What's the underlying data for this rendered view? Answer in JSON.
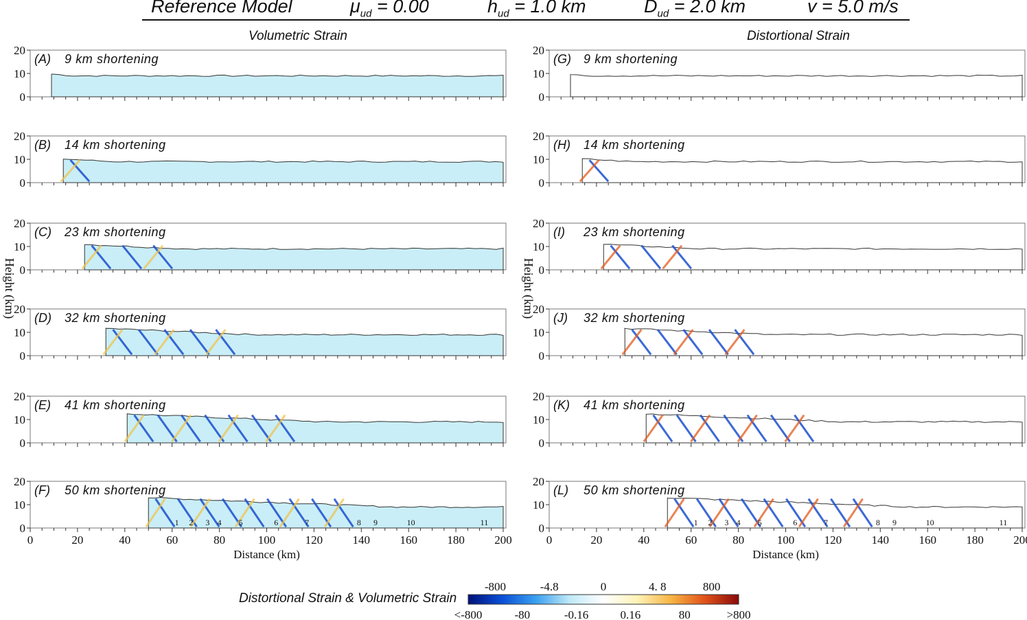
{
  "header": {
    "model": "Reference  Model",
    "mu_sym": "μ",
    "mu_sub": "ud",
    "mu_val": " = 0.00",
    "h_sym": "h",
    "h_sub": "ud",
    "h_val": " = 1.0 km",
    "d_sym": "D",
    "d_sub": "ud",
    "d_val": " = 2.0 km",
    "v_label": "v = 5.0 m/s"
  },
  "columns": {
    "left_title": "Volumetric Strain",
    "right_title": "Distortional Strain"
  },
  "axes": {
    "y_label": "Height (km)",
    "x_label": "Distance (km)",
    "y_ticks": [
      "0",
      "10",
      "20"
    ],
    "x_ticks": [
      "0",
      "20",
      "40",
      "60",
      "80",
      "100",
      "120",
      "140",
      "160",
      "180",
      "200"
    ],
    "x_range": [
      0,
      200
    ],
    "y_range": [
      0,
      20
    ]
  },
  "panels_left": [
    {
      "label": "(A)",
      "title": "9 km shortening",
      "shortening": 9
    },
    {
      "label": "(B)",
      "title": "14 km shortening",
      "shortening": 14
    },
    {
      "label": "(C)",
      "title": "23 km shortening",
      "shortening": 23
    },
    {
      "label": "(D)",
      "title": "32 km shortening",
      "shortening": 32
    },
    {
      "label": "(E)",
      "title": "41 km shortening",
      "shortening": 41
    },
    {
      "label": "(F)",
      "title": "50 km shortening",
      "shortening": 50
    }
  ],
  "panels_right": [
    {
      "label": "(G)",
      "title": "9 km shortening",
      "shortening": 9
    },
    {
      "label": "(H)",
      "title": "14 km shortening",
      "shortening": 14
    },
    {
      "label": "(I)",
      "title": "23 km shortening",
      "shortening": 23
    },
    {
      "label": "(J)",
      "title": "32 km shortening",
      "shortening": 32
    },
    {
      "label": "(K)",
      "title": "41 km shortening",
      "shortening": 41
    },
    {
      "label": "(L)",
      "title": "50 km shortening",
      "shortening": 50
    }
  ],
  "fault_labels": [
    "1",
    "2",
    "3",
    "4",
    "5",
    "6",
    "7",
    "8",
    "9",
    "10",
    "11"
  ],
  "colorbar": {
    "title": "Distortional Strain & Volumetric Strain",
    "top_labels": [
      "-800",
      "-4.8",
      "0",
      "4. 8",
      "800"
    ],
    "bottom_labels": [
      "<-800",
      "-80",
      "-0.16",
      "0.16",
      "80",
      ">800"
    ],
    "colors": [
      "#00127a",
      "#0a4fd6",
      "#3aa0f0",
      "#bfe9f7",
      "#ffffff",
      "#fff3b8",
      "#f7b544",
      "#e0521a",
      "#8a0a0a"
    ]
  }
}
